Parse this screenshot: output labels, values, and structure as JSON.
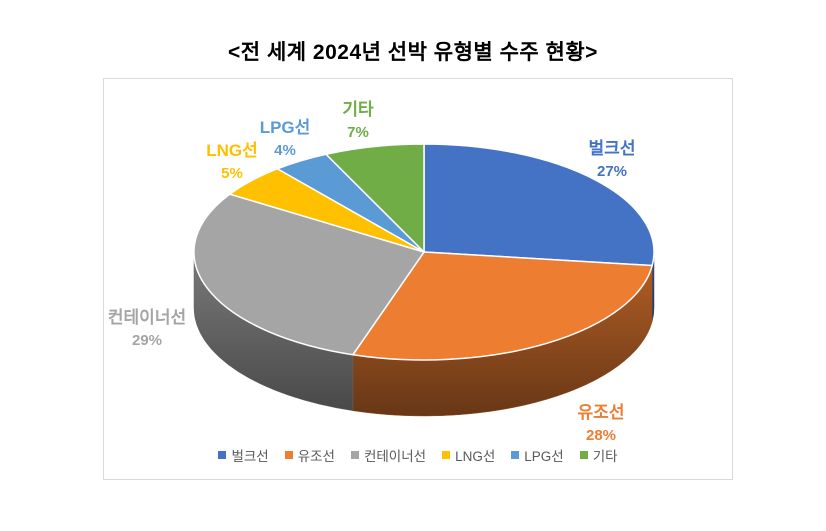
{
  "page": {
    "title": "<전 세계 2024년 선박 유형별 수주 현황>"
  },
  "chart_data": {
    "type": "pie",
    "style": "3d-pie",
    "title": "전 세계 2024년 선박 유형별 수주 현황",
    "categories": [
      "벌크선",
      "유조선",
      "컨테이너선",
      "LNG선",
      "LPG선",
      "기타"
    ],
    "values": [
      27,
      28,
      29,
      5,
      4,
      7
    ],
    "unit": "%",
    "colors": [
      "#4472C4",
      "#ED7D31",
      "#A5A5A5",
      "#FFC000",
      "#5B9BD5",
      "#70AD47"
    ],
    "start_angle_deg": 0,
    "direction": "clockwise",
    "legend_position": "bottom",
    "data_labels": [
      "벌크선 27%",
      "유조선 28%",
      "컨테이너선 29%",
      "LNG선 5%",
      "LPG선 4%",
      "기타 7%"
    ]
  }
}
